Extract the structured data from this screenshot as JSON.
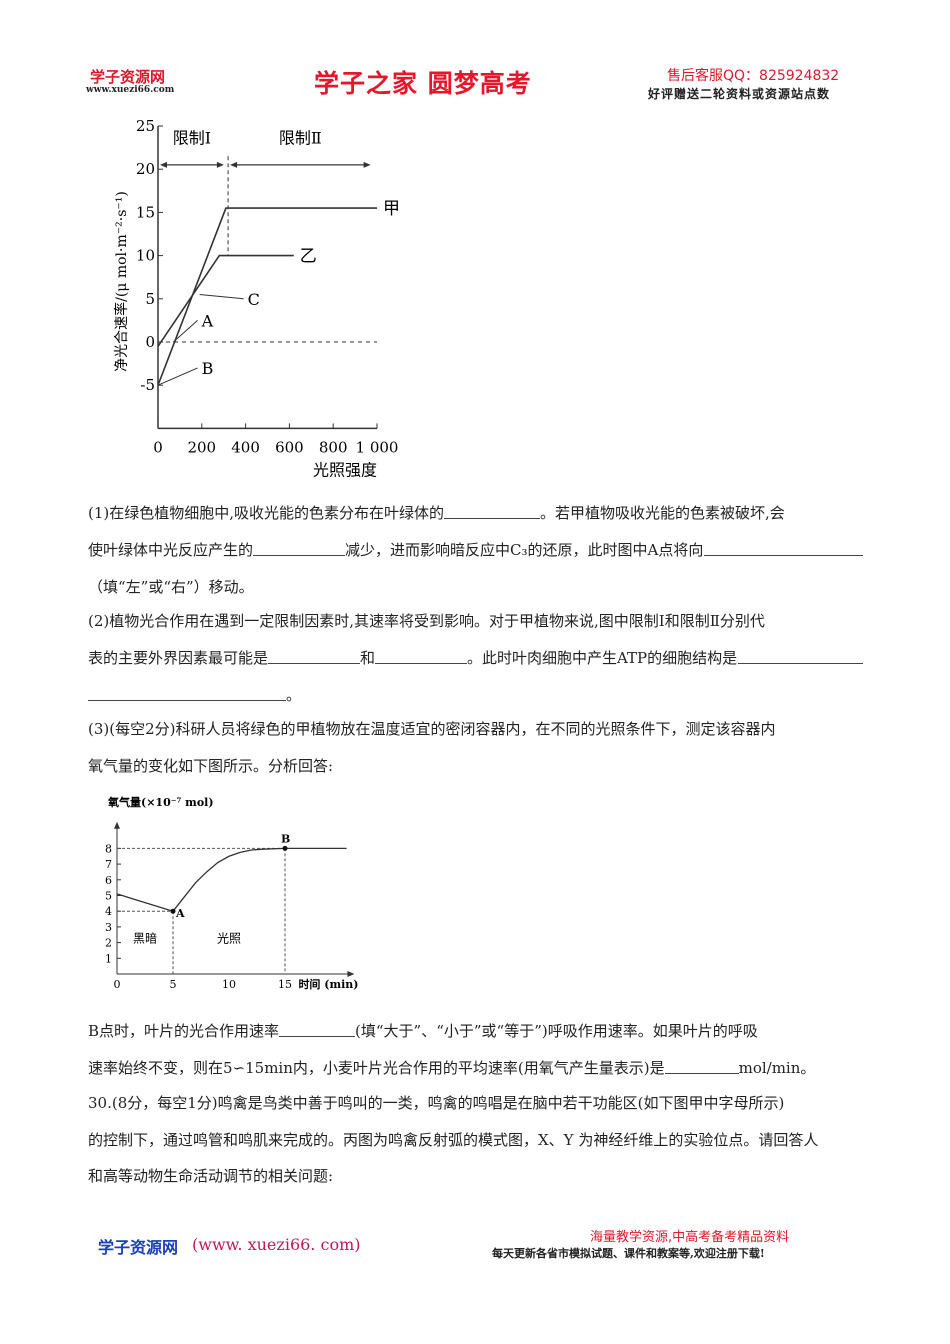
{
  "header": {
    "logo_text": "学子资源网",
    "logo_url": "www.xuezi66.com",
    "title": "学子之家 圆梦高考",
    "service_qq": "售后客服QQ：825924832",
    "promo": "好评赠送二轮资料或资源站点数"
  },
  "body": {
    "p1": [
      "(1)在绿色植物细胞中,吸收光能的色素分布在叶绿体的",
      "。若甲植物吸收光能的色素被破坏,会"
    ],
    "p1b": [
      "使叶绿体中光反应产生的",
      "减少，进而影响暗反应中C₃的还原，此时图中A点将向"
    ],
    "p1c": "（填“左”或“右”）移动。",
    "p2": "(2)植物光合作用在遇到一定限制因素时,其速率将受到影响。对于甲植物来说,图中限制Ⅰ和限制Ⅱ分别代",
    "p2b": [
      "表的主要外界因素最可能是",
      "和",
      "。此时叶肉细胞中产生ATP的细胞结构是"
    ],
    "p2c": "。",
    "p3": "(3)(每空2分)科研人员将绿色的甲植物放在温度适宜的密闭容器内，在不同的光照条件下，测定该容器内",
    "p3b": "氧气量的变化如下图所示。分析回答:",
    "p4": [
      "B点时，叶片的光合作用速率",
      "(填“大于”、“小于”或“等于”)呼吸作用速率。如果叶片的呼吸"
    ],
    "p4b": [
      "速率始终不变，则在5∽15min内，小麦叶片光合作用的平均速率(用氧气产生量表示)是",
      "mol/min。"
    ],
    "p5": "30.(8分，每空1分)鸣禽是鸟类中善于鸣叫的一类，鸣禽的鸣唱是在脑中若干功能区(如下图甲中字母所示)",
    "p5b": "的控制下，通过鸣管和鸣肌来完成的。丙图为鸣禽反射弧的模式图，X、Y 为神经纤维上的实验位点。请回答人",
    "p5c": "和高等动物生命活动调节的相关问题:"
  },
  "footer": {
    "logo_text": "学子资源网",
    "url": "(www. xuezi66. com)",
    "line1": "海量教学资源,中高考备考精品资料",
    "line2": "每天更新各省市模拟试题、课件和教案等,欢迎注册下载!"
  },
  "chart_data": [
    {
      "type": "line",
      "xlabel": "光照强度",
      "ylabel": "净光合速率/(μ mol·m⁻²·s⁻¹)",
      "xlim": [
        0,
        1000
      ],
      "ylim": [
        -10,
        25
      ],
      "xticks": [
        0,
        200,
        400,
        600,
        800,
        1000
      ],
      "xtick_labels": [
        "0",
        "200",
        "400",
        "600",
        "800",
        "1 000"
      ],
      "yticks": [
        -5,
        0,
        5,
        10,
        15,
        20,
        25
      ],
      "ytick_labels": [
        "-5",
        "0",
        "5",
        "10",
        "15",
        "20",
        "25"
      ],
      "series": [
        {
          "name": "甲",
          "points": [
            [
              0,
              -5
            ],
            [
              310,
              15.5
            ],
            [
              1000,
              15.5
            ]
          ]
        },
        {
          "name": "乙",
          "points": [
            [
              0,
              -0.5
            ],
            [
              280,
              10
            ],
            [
              620,
              10
            ]
          ]
        }
      ],
      "annotations": [
        {
          "text": "A",
          "at": [
            70,
            0
          ],
          "label_at": [
            190,
            2.5
          ]
        },
        {
          "text": "B",
          "at": [
            0,
            -5
          ],
          "label_at": [
            190,
            -3
          ]
        },
        {
          "text": "C",
          "at": [
            190,
            5.5
          ],
          "label_at": [
            400,
            5
          ]
        }
      ],
      "regions": [
        {
          "text": "限制Ⅰ",
          "from": 0,
          "to": 310
        },
        {
          "text": "限制Ⅱ",
          "from": 320,
          "to": 980
        }
      ],
      "boundary_x": 320,
      "reference_y": 0
    },
    {
      "type": "line",
      "ylabel": "氧气量(×10⁻⁷ mol)",
      "xlabel": "时间 (min)",
      "xlim": [
        0,
        20
      ],
      "ylim": [
        0,
        9
      ],
      "xticks": [
        0,
        5,
        10,
        15
      ],
      "yticks": [
        1,
        2,
        3,
        4,
        5,
        6,
        7,
        8
      ],
      "series": [
        {
          "points": [
            [
              0,
              5.1
            ],
            [
              5,
              4
            ],
            [
              6,
              4.9
            ],
            [
              7,
              5.8
            ],
            [
              8,
              6.5
            ],
            [
              9,
              7.1
            ],
            [
              10,
              7.5
            ],
            [
              11,
              7.75
            ],
            [
              12,
              7.9
            ],
            [
              13,
              7.95
            ],
            [
              15,
              8
            ],
            [
              20.5,
              8
            ]
          ]
        }
      ],
      "points": [
        {
          "label": "A",
          "x": 5,
          "y": 4
        },
        {
          "label": "B",
          "x": 15,
          "y": 8
        }
      ],
      "regions": [
        {
          "text": "黑暗",
          "x": 2.5
        },
        {
          "text": "光照",
          "x": 10
        }
      ]
    }
  ]
}
